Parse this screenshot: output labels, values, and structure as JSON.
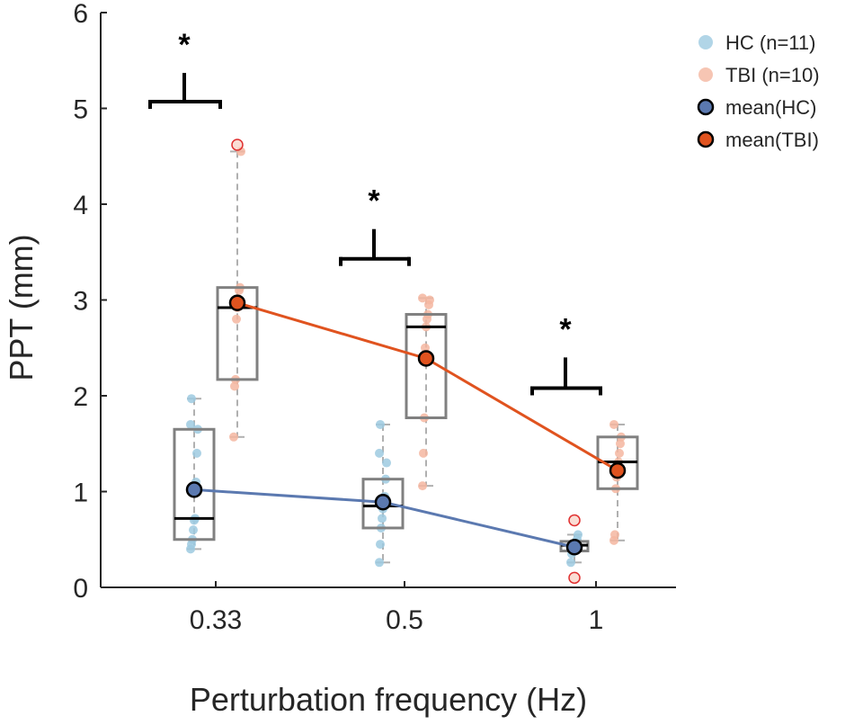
{
  "chart_data": {
    "type": "box",
    "xlabel": "Perturbation frequency (Hz)",
    "ylabel": "PPT (mm)",
    "categories": [
      "0.33",
      "0.5",
      "1"
    ],
    "ylim": [
      0,
      6
    ],
    "yticks": [
      0,
      1,
      2,
      3,
      4,
      5,
      6
    ],
    "significance_marker": "*",
    "colors": {
      "hc_points": "#9ecae1",
      "tbi_points": "#f4b6a0",
      "hc_mean": "#5b79b0",
      "tbi_mean": "#e0531f",
      "box": "#808080",
      "outlier": "#e03030",
      "whisker": "#b0b0b0"
    },
    "legend": [
      {
        "label": "HC (n=11)",
        "kind": "hc_points"
      },
      {
        "label": "TBI (n=10)",
        "kind": "tbi_points"
      },
      {
        "label": "mean(HC)",
        "kind": "hc_mean"
      },
      {
        "label": "mean(TBI)",
        "kind": "tbi_mean"
      }
    ],
    "series": [
      {
        "name": "HC",
        "boxes": [
          {
            "category": "0.33",
            "q1": 0.5,
            "median": 0.72,
            "q3": 1.65,
            "whisker_low": 0.4,
            "whisker_high": 1.97,
            "mean": 1.02,
            "outliers": [],
            "points": [
              0.4,
              0.45,
              0.5,
              0.6,
              0.7,
              0.72,
              1.1,
              1.4,
              1.65,
              1.7,
              1.97
            ]
          },
          {
            "category": "0.5",
            "q1": 0.62,
            "median": 0.85,
            "q3": 1.13,
            "whisker_low": 0.26,
            "whisker_high": 1.7,
            "mean": 0.89,
            "outliers": [],
            "points": [
              0.26,
              0.45,
              0.62,
              0.72,
              0.82,
              0.85,
              0.95,
              1.13,
              1.3,
              1.4,
              1.7
            ]
          },
          {
            "category": "1",
            "q1": 0.38,
            "median": 0.44,
            "q3": 0.48,
            "whisker_low": 0.26,
            "whisker_high": 0.55,
            "mean": 0.42,
            "outliers": [
              0.1,
              0.7
            ],
            "points": [
              0.26,
              0.35,
              0.38,
              0.42,
              0.44,
              0.46,
              0.48,
              0.5,
              0.55
            ]
          }
        ]
      },
      {
        "name": "TBI",
        "boxes": [
          {
            "category": "0.33",
            "q1": 2.17,
            "median": 2.92,
            "q3": 3.13,
            "whisker_low": 1.57,
            "whisker_high": 4.55,
            "mean": 2.97,
            "outliers": [
              4.62
            ],
            "points": [
              1.57,
              2.1,
              2.17,
              2.8,
              2.92,
              2.95,
              3.1,
              3.13,
              4.55
            ]
          },
          {
            "category": "0.5",
            "q1": 1.77,
            "median": 2.72,
            "q3": 2.85,
            "whisker_low": 1.06,
            "whisker_high": 3.02,
            "mean": 2.39,
            "outliers": [],
            "points": [
              1.06,
              1.4,
              1.77,
              2.5,
              2.72,
              2.8,
              2.85,
              2.95,
              3.0,
              3.02
            ]
          },
          {
            "category": "1",
            "q1": 1.03,
            "median": 1.31,
            "q3": 1.57,
            "whisker_low": 0.49,
            "whisker_high": 1.7,
            "mean": 1.22,
            "outliers": [],
            "points": [
              0.49,
              0.55,
              1.03,
              1.15,
              1.25,
              1.31,
              1.4,
              1.5,
              1.57,
              1.7
            ]
          }
        ]
      }
    ],
    "significance": [
      {
        "category": "0.33",
        "bracket_y": 5.07,
        "stem_top": 5.37
      },
      {
        "category": "0.5",
        "bracket_y": 3.43,
        "stem_top": 3.74
      },
      {
        "category": "1",
        "bracket_y": 2.08,
        "stem_top": 2.4
      }
    ]
  }
}
